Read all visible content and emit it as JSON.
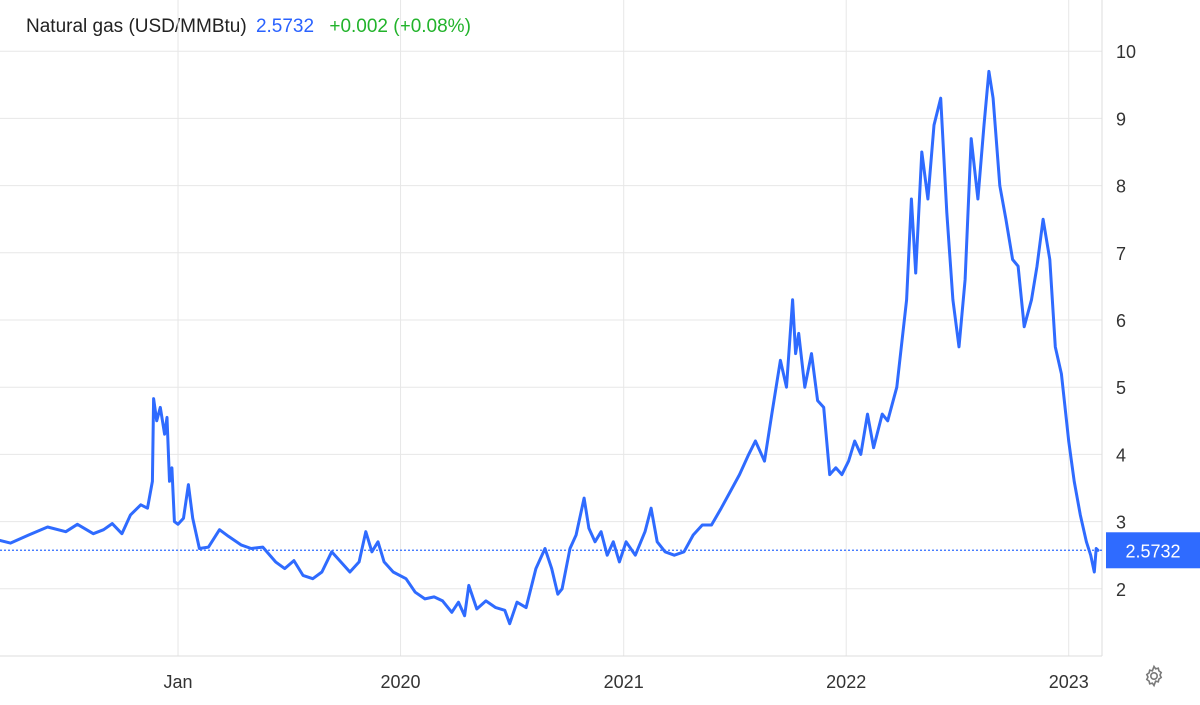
{
  "header": {
    "instrument": "Natural gas (USD/MMBtu)",
    "price": "2.5732",
    "change": "+0.002 (+0.08%)"
  },
  "colors": {
    "line": "#2f6bff",
    "price": "#2962ff",
    "change": "#22b32b",
    "grid": "#e7e7e7",
    "tag_bg": "#2f6bff"
  },
  "price_tag": "2.5732",
  "settings": {
    "icon": "gear-icon"
  },
  "chart_data": {
    "type": "line",
    "title": "",
    "xlabel": "",
    "ylabel": "",
    "ylim": [
      1.0,
      10.5
    ],
    "yticks": [
      2,
      3,
      4,
      5,
      6,
      7,
      8,
      9,
      10
    ],
    "xlim": [
      "2018-03-15",
      "2023-02-18"
    ],
    "xticks": [
      {
        "date": "2019-01-01",
        "label": "Jan"
      },
      {
        "date": "2020-01-01",
        "label": "2020"
      },
      {
        "date": "2021-01-01",
        "label": "2021"
      },
      {
        "date": "2022-01-01",
        "label": "2022"
      },
      {
        "date": "2023-01-01",
        "label": "2023"
      }
    ],
    "grid": true,
    "last_value": 2.5732,
    "series": [
      {
        "values": [
          [
            "2018-03-15",
            2.72
          ],
          [
            "2018-04-01",
            2.68
          ],
          [
            "2018-05-01",
            2.8
          ],
          [
            "2018-06-01",
            2.92
          ],
          [
            "2018-07-01",
            2.85
          ],
          [
            "2018-07-20",
            2.96
          ],
          [
            "2018-08-15",
            2.82
          ],
          [
            "2018-09-01",
            2.88
          ],
          [
            "2018-09-15",
            2.97
          ],
          [
            "2018-10-01",
            2.82
          ],
          [
            "2018-10-15",
            3.1
          ],
          [
            "2018-11-01",
            3.25
          ],
          [
            "2018-11-12",
            3.2
          ],
          [
            "2018-11-20",
            3.6
          ],
          [
            "2018-11-22",
            4.83
          ],
          [
            "2018-11-27",
            4.5
          ],
          [
            "2018-12-03",
            4.7
          ],
          [
            "2018-12-10",
            4.3
          ],
          [
            "2018-12-14",
            4.55
          ],
          [
            "2018-12-18",
            3.6
          ],
          [
            "2018-12-22",
            3.8
          ],
          [
            "2018-12-26",
            3.0
          ],
          [
            "2019-01-01",
            2.96
          ],
          [
            "2019-01-10",
            3.05
          ],
          [
            "2019-01-18",
            3.55
          ],
          [
            "2019-01-25",
            3.05
          ],
          [
            "2019-02-05",
            2.6
          ],
          [
            "2019-02-20",
            2.62
          ],
          [
            "2019-03-10",
            2.88
          ],
          [
            "2019-03-25",
            2.78
          ],
          [
            "2019-04-15",
            2.65
          ],
          [
            "2019-05-01",
            2.6
          ],
          [
            "2019-05-20",
            2.62
          ],
          [
            "2019-06-10",
            2.4
          ],
          [
            "2019-06-25",
            2.3
          ],
          [
            "2019-07-10",
            2.42
          ],
          [
            "2019-07-25",
            2.2
          ],
          [
            "2019-08-10",
            2.15
          ],
          [
            "2019-08-25",
            2.25
          ],
          [
            "2019-09-10",
            2.55
          ],
          [
            "2019-09-25",
            2.4
          ],
          [
            "2019-10-10",
            2.25
          ],
          [
            "2019-10-25",
            2.4
          ],
          [
            "2019-11-05",
            2.85
          ],
          [
            "2019-11-15",
            2.55
          ],
          [
            "2019-11-25",
            2.7
          ],
          [
            "2019-12-05",
            2.4
          ],
          [
            "2019-12-20",
            2.25
          ],
          [
            "2020-01-10",
            2.15
          ],
          [
            "2020-01-25",
            1.95
          ],
          [
            "2020-02-10",
            1.85
          ],
          [
            "2020-02-25",
            1.88
          ],
          [
            "2020-03-10",
            1.82
          ],
          [
            "2020-03-25",
            1.65
          ],
          [
            "2020-04-05",
            1.8
          ],
          [
            "2020-04-15",
            1.6
          ],
          [
            "2020-04-22",
            2.05
          ],
          [
            "2020-05-05",
            1.7
          ],
          [
            "2020-05-20",
            1.82
          ],
          [
            "2020-06-05",
            1.72
          ],
          [
            "2020-06-20",
            1.68
          ],
          [
            "2020-06-28",
            1.48
          ],
          [
            "2020-07-10",
            1.8
          ],
          [
            "2020-07-25",
            1.72
          ],
          [
            "2020-08-10",
            2.3
          ],
          [
            "2020-08-25",
            2.6
          ],
          [
            "2020-09-05",
            2.3
          ],
          [
            "2020-09-15",
            1.92
          ],
          [
            "2020-09-22",
            2.0
          ],
          [
            "2020-10-05",
            2.6
          ],
          [
            "2020-10-15",
            2.8
          ],
          [
            "2020-10-28",
            3.35
          ],
          [
            "2020-11-05",
            2.9
          ],
          [
            "2020-11-15",
            2.7
          ],
          [
            "2020-11-25",
            2.85
          ],
          [
            "2020-12-05",
            2.5
          ],
          [
            "2020-12-15",
            2.7
          ],
          [
            "2020-12-25",
            2.4
          ],
          [
            "2021-01-05",
            2.7
          ],
          [
            "2021-01-20",
            2.5
          ],
          [
            "2021-02-05",
            2.85
          ],
          [
            "2021-02-15",
            3.2
          ],
          [
            "2021-02-25",
            2.7
          ],
          [
            "2021-03-10",
            2.55
          ],
          [
            "2021-03-25",
            2.5
          ],
          [
            "2021-04-10",
            2.55
          ],
          [
            "2021-04-25",
            2.8
          ],
          [
            "2021-05-10",
            2.95
          ],
          [
            "2021-05-25",
            2.95
          ],
          [
            "2021-06-10",
            3.2
          ],
          [
            "2021-06-25",
            3.45
          ],
          [
            "2021-07-10",
            3.7
          ],
          [
            "2021-07-25",
            4.0
          ],
          [
            "2021-08-05",
            4.2
          ],
          [
            "2021-08-20",
            3.9
          ],
          [
            "2021-09-01",
            4.6
          ],
          [
            "2021-09-15",
            5.4
          ],
          [
            "2021-09-25",
            5.0
          ],
          [
            "2021-10-05",
            6.3
          ],
          [
            "2021-10-10",
            5.5
          ],
          [
            "2021-10-15",
            5.8
          ],
          [
            "2021-10-25",
            5.0
          ],
          [
            "2021-11-05",
            5.5
          ],
          [
            "2021-11-15",
            4.8
          ],
          [
            "2021-11-25",
            4.7
          ],
          [
            "2021-12-05",
            3.7
          ],
          [
            "2021-12-15",
            3.8
          ],
          [
            "2021-12-25",
            3.7
          ],
          [
            "2022-01-05",
            3.9
          ],
          [
            "2022-01-15",
            4.2
          ],
          [
            "2022-01-25",
            4.0
          ],
          [
            "2022-02-05",
            4.6
          ],
          [
            "2022-02-15",
            4.1
          ],
          [
            "2022-03-01",
            4.6
          ],
          [
            "2022-03-10",
            4.5
          ],
          [
            "2022-03-25",
            5.0
          ],
          [
            "2022-04-10",
            6.3
          ],
          [
            "2022-04-18",
            7.8
          ],
          [
            "2022-04-25",
            6.7
          ],
          [
            "2022-05-05",
            8.5
          ],
          [
            "2022-05-15",
            7.8
          ],
          [
            "2022-05-25",
            8.9
          ],
          [
            "2022-06-05",
            9.3
          ],
          [
            "2022-06-15",
            7.6
          ],
          [
            "2022-06-25",
            6.3
          ],
          [
            "2022-07-05",
            5.6
          ],
          [
            "2022-07-15",
            6.6
          ],
          [
            "2022-07-25",
            8.7
          ],
          [
            "2022-08-05",
            7.8
          ],
          [
            "2022-08-15",
            8.9
          ],
          [
            "2022-08-23",
            9.7
          ],
          [
            "2022-08-30",
            9.3
          ],
          [
            "2022-09-10",
            8.0
          ],
          [
            "2022-09-20",
            7.5
          ],
          [
            "2022-10-01",
            6.9
          ],
          [
            "2022-10-10",
            6.8
          ],
          [
            "2022-10-20",
            5.9
          ],
          [
            "2022-11-01",
            6.3
          ],
          [
            "2022-11-10",
            6.8
          ],
          [
            "2022-11-20",
            7.5
          ],
          [
            "2022-12-01",
            6.9
          ],
          [
            "2022-12-10",
            5.6
          ],
          [
            "2022-12-20",
            5.2
          ],
          [
            "2023-01-01",
            4.2
          ],
          [
            "2023-01-10",
            3.6
          ],
          [
            "2023-01-20",
            3.1
          ],
          [
            "2023-01-30",
            2.7
          ],
          [
            "2023-02-06",
            2.5
          ],
          [
            "2023-02-12",
            2.25
          ],
          [
            "2023-02-15",
            2.6
          ],
          [
            "2023-02-18",
            2.5732
          ]
        ]
      }
    ]
  }
}
